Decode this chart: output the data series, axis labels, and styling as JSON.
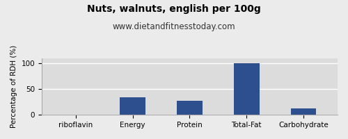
{
  "title": "Nuts, walnuts, english per 100g",
  "subtitle": "www.dietandfitnesstoday.com",
  "categories": [
    "riboflavin",
    "Energy",
    "Protein",
    "Total-Fat",
    "Carbohydrate"
  ],
  "values": [
    1,
    34,
    27,
    100,
    12
  ],
  "bar_color": "#2d4f8e",
  "ylabel": "Percentage of RDH (%)",
  "ylim": [
    0,
    110
  ],
  "yticks": [
    0,
    50,
    100
  ],
  "background_color": "#ebebeb",
  "plot_bg_color": "#dcdcdc",
  "title_fontsize": 10,
  "subtitle_fontsize": 8.5,
  "ylabel_fontsize": 7.5,
  "tick_fontsize": 7.5,
  "grid_color": "#ffffff",
  "border_color": "#aaaaaa",
  "bar_width": 0.45
}
